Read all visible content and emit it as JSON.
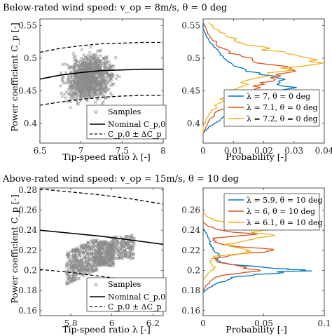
{
  "figure": {
    "top_title": "Below-rated wind speed: v_op = 8m/s, θ = 0 deg",
    "bottom_title": "Above-rated wind speed: v_op = 15m/s, θ = 10 deg",
    "ylabel_cp": "Power coefficient C_p [-]",
    "xlabel_tsr": "Tip-speed ratio λ [-]",
    "xlabel_prob": "Probability [-]",
    "legend_samples": "Samples",
    "legend_nominal": "Nominal C_p,0",
    "legend_band": "C_p,0 ± ΔC_p"
  },
  "colors": {
    "blue": "#0072BD",
    "orange": "#D95319",
    "yellow": "#EDB120",
    "samples": "#8c8c8c"
  },
  "chart_data": [
    {
      "type": "scatter",
      "xlim": [
        6.5,
        8
      ],
      "ylim": [
        0.37,
        0.56
      ],
      "xticks": [
        6.5,
        7,
        7.5,
        8
      ],
      "xtick_labels": [
        "6.5",
        "7",
        "7.5",
        "8"
      ],
      "yticks": [
        0.4,
        0.45,
        0.5,
        0.55
      ],
      "ytick_labels": [
        "0.4",
        "0.45",
        "0.5",
        "0.55"
      ],
      "samples_x_range": [
        6.55,
        7.75
      ],
      "samples_y_range": [
        0.39,
        0.55
      ],
      "nominal": {
        "x": [
          6.5,
          6.75,
          7,
          7.25,
          7.5,
          7.75,
          8
        ],
        "y": [
          0.468,
          0.474,
          0.478,
          0.481,
          0.482,
          0.483,
          0.483
        ]
      },
      "upper": {
        "x": [
          6.5,
          6.75,
          7,
          7.25,
          7.5,
          7.75,
          8
        ],
        "y": [
          0.509,
          0.515,
          0.519,
          0.522,
          0.523,
          0.524,
          0.524
        ]
      },
      "lower": {
        "x": [
          6.5,
          6.75,
          7,
          7.25,
          7.5,
          7.75,
          8
        ],
        "y": [
          0.428,
          0.433,
          0.437,
          0.44,
          0.442,
          0.443,
          0.443
        ]
      }
    },
    {
      "type": "line",
      "xlim": [
        0,
        0.04
      ],
      "ylim": [
        0.37,
        0.56
      ],
      "xticks": [
        0,
        0.01,
        0.02,
        0.03,
        0.04
      ],
      "xtick_labels": [
        "0",
        "0.01",
        "0.02",
        "0.03",
        "0.04"
      ],
      "yticks": [
        0.4,
        0.45,
        0.5,
        0.55
      ],
      "ytick_labels": [
        "0.4",
        "0.45",
        "0.5",
        "0.55"
      ],
      "series": [
        {
          "name": "λ = 7, θ = 0 deg",
          "color": "blue",
          "y": [
            0.385,
            0.395,
            0.405,
            0.415,
            0.425,
            0.435,
            0.445,
            0.455,
            0.465,
            0.475,
            0.485,
            0.495,
            0.505,
            0.515,
            0.525,
            0.535,
            0.545,
            0.555
          ],
          "p": [
            0.0,
            0.002,
            0.005,
            0.009,
            0.012,
            0.018,
            0.024,
            0.03,
            0.027,
            0.02,
            0.012,
            0.009,
            0.006,
            0.004,
            0.002,
            0.001,
            0.0,
            0.0
          ]
        },
        {
          "name": "λ = 7.1, θ = 0 deg",
          "color": "orange",
          "y": [
            0.385,
            0.395,
            0.405,
            0.415,
            0.425,
            0.435,
            0.445,
            0.455,
            0.465,
            0.475,
            0.485,
            0.495,
            0.505,
            0.515,
            0.525,
            0.535,
            0.545,
            0.555
          ],
          "p": [
            0.0,
            0.001,
            0.002,
            0.004,
            0.007,
            0.01,
            0.014,
            0.018,
            0.022,
            0.028,
            0.026,
            0.018,
            0.011,
            0.006,
            0.004,
            0.002,
            0.001,
            0.0
          ]
        },
        {
          "name": "λ = 7.2, θ = 0 deg",
          "color": "yellow",
          "y": [
            0.385,
            0.395,
            0.405,
            0.415,
            0.425,
            0.435,
            0.445,
            0.455,
            0.465,
            0.475,
            0.485,
            0.495,
            0.505,
            0.515,
            0.525,
            0.535,
            0.545,
            0.555
          ],
          "p": [
            0.0,
            0.0,
            0.001,
            0.002,
            0.004,
            0.006,
            0.008,
            0.011,
            0.015,
            0.02,
            0.029,
            0.037,
            0.03,
            0.02,
            0.012,
            0.008,
            0.004,
            0.002
          ]
        }
      ]
    },
    {
      "type": "scatter",
      "xlim": [
        5.65,
        6.25
      ],
      "ylim": [
        0.155,
        0.282
      ],
      "xticks": [
        5.8,
        6,
        6.2
      ],
      "xtick_labels": [
        "5.8",
        "6",
        "6.2"
      ],
      "yticks": [
        0.16,
        0.18,
        0.2,
        0.22,
        0.24,
        0.26,
        0.28
      ],
      "ytick_labels": [
        "0.16",
        "0.18",
        "0.2",
        "0.22",
        "0.24",
        "0.26",
        "0.28"
      ],
      "samples_x_range": [
        5.72,
        6.12
      ],
      "samples_y_range": [
        0.178,
        0.236
      ],
      "nominal": {
        "x": [
          5.65,
          5.8,
          5.95,
          6.1,
          6.25
        ],
        "y": [
          0.24,
          0.237,
          0.234,
          0.23,
          0.226
        ]
      },
      "upper": {
        "x": [
          5.65,
          5.8,
          5.95,
          6.1,
          6.25
        ],
        "y": [
          0.281,
          0.278,
          0.275,
          0.271,
          0.266
        ]
      },
      "lower": {
        "x": [
          5.65,
          5.8,
          5.95,
          6.1,
          6.25
        ],
        "y": [
          0.201,
          0.198,
          0.194,
          0.19,
          0.186
        ]
      }
    },
    {
      "type": "line",
      "xlim": [
        0,
        0.1
      ],
      "ylim": [
        0.155,
        0.282
      ],
      "xticks": [
        0,
        0.05,
        0.1
      ],
      "xtick_labels": [
        "0",
        "0.05",
        "0.1"
      ],
      "yticks": [
        0.16,
        0.18,
        0.2,
        0.22,
        0.24,
        0.26
      ],
      "ytick_labels": [
        "0.16",
        "0.18",
        "0.2",
        "0.22",
        "0.24",
        "0.26"
      ],
      "series": [
        {
          "name": "λ = 5.9, θ = 10 deg",
          "color": "blue",
          "y": [
            0.178,
            0.182,
            0.186,
            0.19,
            0.194,
            0.198,
            0.2,
            0.202,
            0.206,
            0.21,
            0.214,
            0.218,
            0.222,
            0.226,
            0.23,
            0.234,
            0.238,
            0.242
          ],
          "p": [
            0.0,
            0.004,
            0.01,
            0.018,
            0.03,
            0.065,
            0.085,
            0.06,
            0.02,
            0.012,
            0.015,
            0.01,
            0.008,
            0.006,
            0.005,
            0.004,
            0.002,
            0.0
          ]
        },
        {
          "name": "λ = 6, θ = 10 deg",
          "color": "orange",
          "y": [
            0.18,
            0.184,
            0.188,
            0.192,
            0.196,
            0.2,
            0.204,
            0.208,
            0.212,
            0.216,
            0.22,
            0.224,
            0.228,
            0.232,
            0.236,
            0.24,
            0.244,
            0.248
          ],
          "p": [
            0.0,
            0.002,
            0.005,
            0.008,
            0.02,
            0.045,
            0.03,
            0.012,
            0.01,
            0.03,
            0.06,
            0.025,
            0.01,
            0.008,
            0.04,
            0.015,
            0.004,
            0.0
          ]
        },
        {
          "name": "λ = 6.1, θ = 10 deg",
          "color": "yellow",
          "y": [
            0.19,
            0.194,
            0.198,
            0.202,
            0.206,
            0.21,
            0.214,
            0.218,
            0.222,
            0.226,
            0.23,
            0.234,
            0.238,
            0.242,
            0.246,
            0.25,
            0.254,
            0.258
          ],
          "p": [
            0.0,
            0.002,
            0.005,
            0.01,
            0.008,
            0.006,
            0.01,
            0.04,
            0.03,
            0.02,
            0.035,
            0.055,
            0.045,
            0.06,
            0.03,
            0.01,
            0.003,
            0.0
          ]
        }
      ]
    }
  ]
}
